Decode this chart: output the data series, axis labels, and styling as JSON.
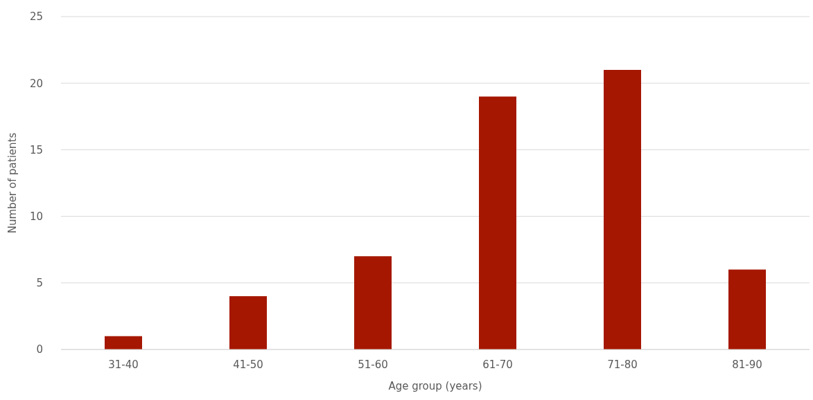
{
  "chart_data": {
    "type": "bar",
    "xlabel": "Age group (years)",
    "ylabel": "Number of patients",
    "categories": [
      "31-40",
      "41-50",
      "51-60",
      "61-70",
      "71-80",
      "81-90"
    ],
    "values": [
      1,
      4,
      7,
      19,
      21,
      6
    ],
    "color": "#a51700",
    "ylim": [
      0,
      25
    ],
    "yticks": [
      0,
      5,
      10,
      15,
      20,
      25
    ],
    "grid": "y",
    "legend": false
  }
}
